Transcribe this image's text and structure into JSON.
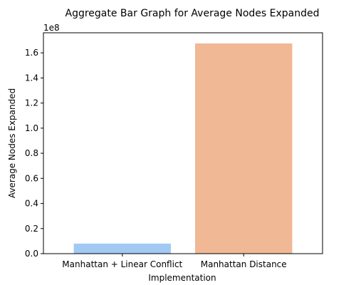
{
  "chart_data": {
    "type": "bar",
    "title": "Aggregate Bar Graph for Average Nodes Expanded",
    "xlabel": "Implementation",
    "ylabel": "Average Nodes Expanded",
    "categories": [
      "Manhattan + Linear Conflict",
      "Manhattan Distance"
    ],
    "values": [
      8000000,
      167500000
    ],
    "colors": [
      "#a1c9f4",
      "#f0b894"
    ],
    "ylim": [
      0,
      176000000
    ],
    "y_scale_offset": "1e8",
    "y_ticks": [
      0,
      20000000,
      40000000,
      60000000,
      80000000,
      100000000,
      120000000,
      140000000,
      160000000
    ],
    "y_tick_labels": [
      "0.0",
      "0.2",
      "0.4",
      "0.6",
      "0.8",
      "1.0",
      "1.2",
      "1.4",
      "1.6"
    ],
    "grid": false,
    "legend": "none"
  }
}
